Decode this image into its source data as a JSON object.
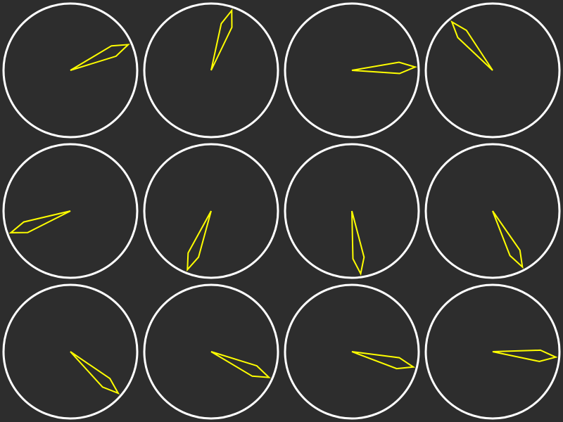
{
  "colors": {
    "background": "#2d2d2d",
    "dial_outline": "#ffffff",
    "needle": "#ffff00"
  },
  "icons": {
    "dial": "dial-icon",
    "needle": "needle-icon"
  },
  "dials": [
    {
      "needle_angle_deg": -24
    },
    {
      "needle_angle_deg": -71
    },
    {
      "needle_angle_deg": -3
    },
    {
      "needle_angle_deg": -130
    },
    {
      "needle_angle_deg": 160
    },
    {
      "needle_angle_deg": 112
    },
    {
      "needle_angle_deg": 82
    },
    {
      "needle_angle_deg": 62
    },
    {
      "needle_angle_deg": 41
    },
    {
      "needle_angle_deg": 24
    },
    {
      "needle_angle_deg": 14
    },
    {
      "needle_angle_deg": 5
    }
  ]
}
